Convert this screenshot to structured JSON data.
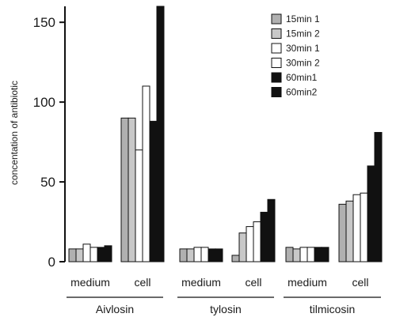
{
  "chart_data": {
    "type": "bar",
    "title": "",
    "xlabel": "",
    "ylabel": "concentation of antibiotic",
    "ylim": [
      0,
      160
    ],
    "yticks": [
      0,
      50,
      100,
      150
    ],
    "grid": false,
    "legend_position": "top-right",
    "groups": [
      {
        "name": "Aivlosin",
        "categories": [
          "medium",
          "cell"
        ]
      },
      {
        "name": "tylosin",
        "categories": [
          "medium",
          "cell"
        ]
      },
      {
        "name": "tilmicosin",
        "categories": [
          "medium",
          "cell"
        ]
      }
    ],
    "categories": [
      "medium",
      "cell",
      "medium",
      "cell",
      "medium",
      "cell"
    ],
    "series": [
      {
        "name": "15min 1",
        "color": "#b0b0b0",
        "values": [
          8,
          90,
          8,
          4,
          9,
          36
        ]
      },
      {
        "name": "15min 2",
        "color": "#c8c8c8",
        "values": [
          8,
          90,
          8,
          18,
          8,
          38
        ]
      },
      {
        "name": "30min 1",
        "color": "#ffffff",
        "values": [
          11,
          70,
          9,
          22,
          9,
          42
        ]
      },
      {
        "name": "30min 2",
        "color": "#ffffff",
        "values": [
          9,
          110,
          9,
          25,
          9,
          43
        ]
      },
      {
        "name": "60min1",
        "color": "#111111",
        "values": [
          9,
          88,
          8,
          31,
          9,
          60
        ]
      },
      {
        "name": "60min2",
        "color": "#111111",
        "values": [
          10,
          160,
          8,
          39,
          9,
          81
        ]
      }
    ]
  }
}
